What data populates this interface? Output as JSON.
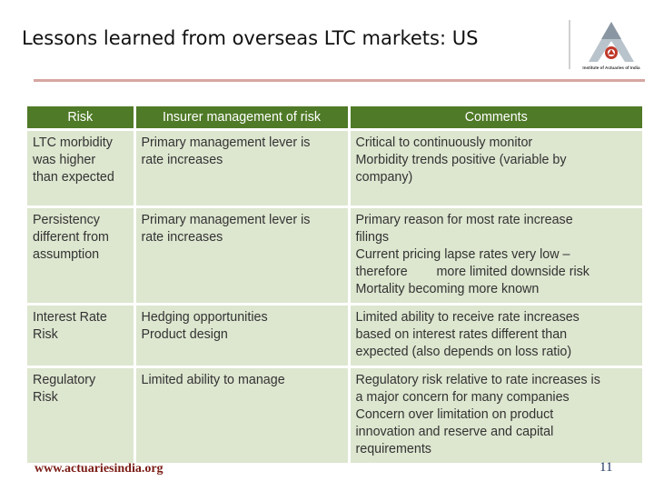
{
  "slide": {
    "title": "Lessons learned from overseas LTC markets: US",
    "logo_caption": "Institute of Actuaries of India",
    "footer_website": "www.actuariesindia.org",
    "page_number": "11"
  },
  "colors": {
    "header_bg": "#4f7a27",
    "cell_bg": "#dde6cf",
    "title_rule": "#d6a6a0",
    "website_text": "#7a1b14"
  },
  "table": {
    "headers": [
      "Risk",
      "Insurer management of risk",
      "Comments"
    ],
    "rows": [
      [
        [
          "LTC morbidity",
          "was higher",
          "than expected"
        ],
        [
          "Primary management lever is",
          "rate increases"
        ],
        [
          "Critical to continuously monitor",
          "Morbidity trends positive (variable by",
          "company)"
        ]
      ],
      [
        [
          "Persistency",
          "different from",
          "assumption"
        ],
        [
          "Primary management lever is",
          "rate increases"
        ],
        [
          "Primary reason for most rate increase",
          "filings",
          "Current pricing lapse rates very low –",
          "therefore        more limited downside risk",
          "Mortality becoming more known"
        ]
      ],
      [
        [
          "Interest Rate",
          "Risk"
        ],
        [
          "Hedging opportunities",
          "Product design"
        ],
        [
          "Limited ability to receive rate increases",
          "based on interest rates different than",
          "expected (also depends on loss ratio)"
        ]
      ],
      [
        [
          "Regulatory",
          "Risk"
        ],
        [
          "Limited ability to manage"
        ],
        [
          "Regulatory risk relative to rate increases is",
          "a major concern for many companies",
          "Concern over limitation on product",
          "innovation and reserve and capital",
          "requirements"
        ]
      ]
    ]
  }
}
